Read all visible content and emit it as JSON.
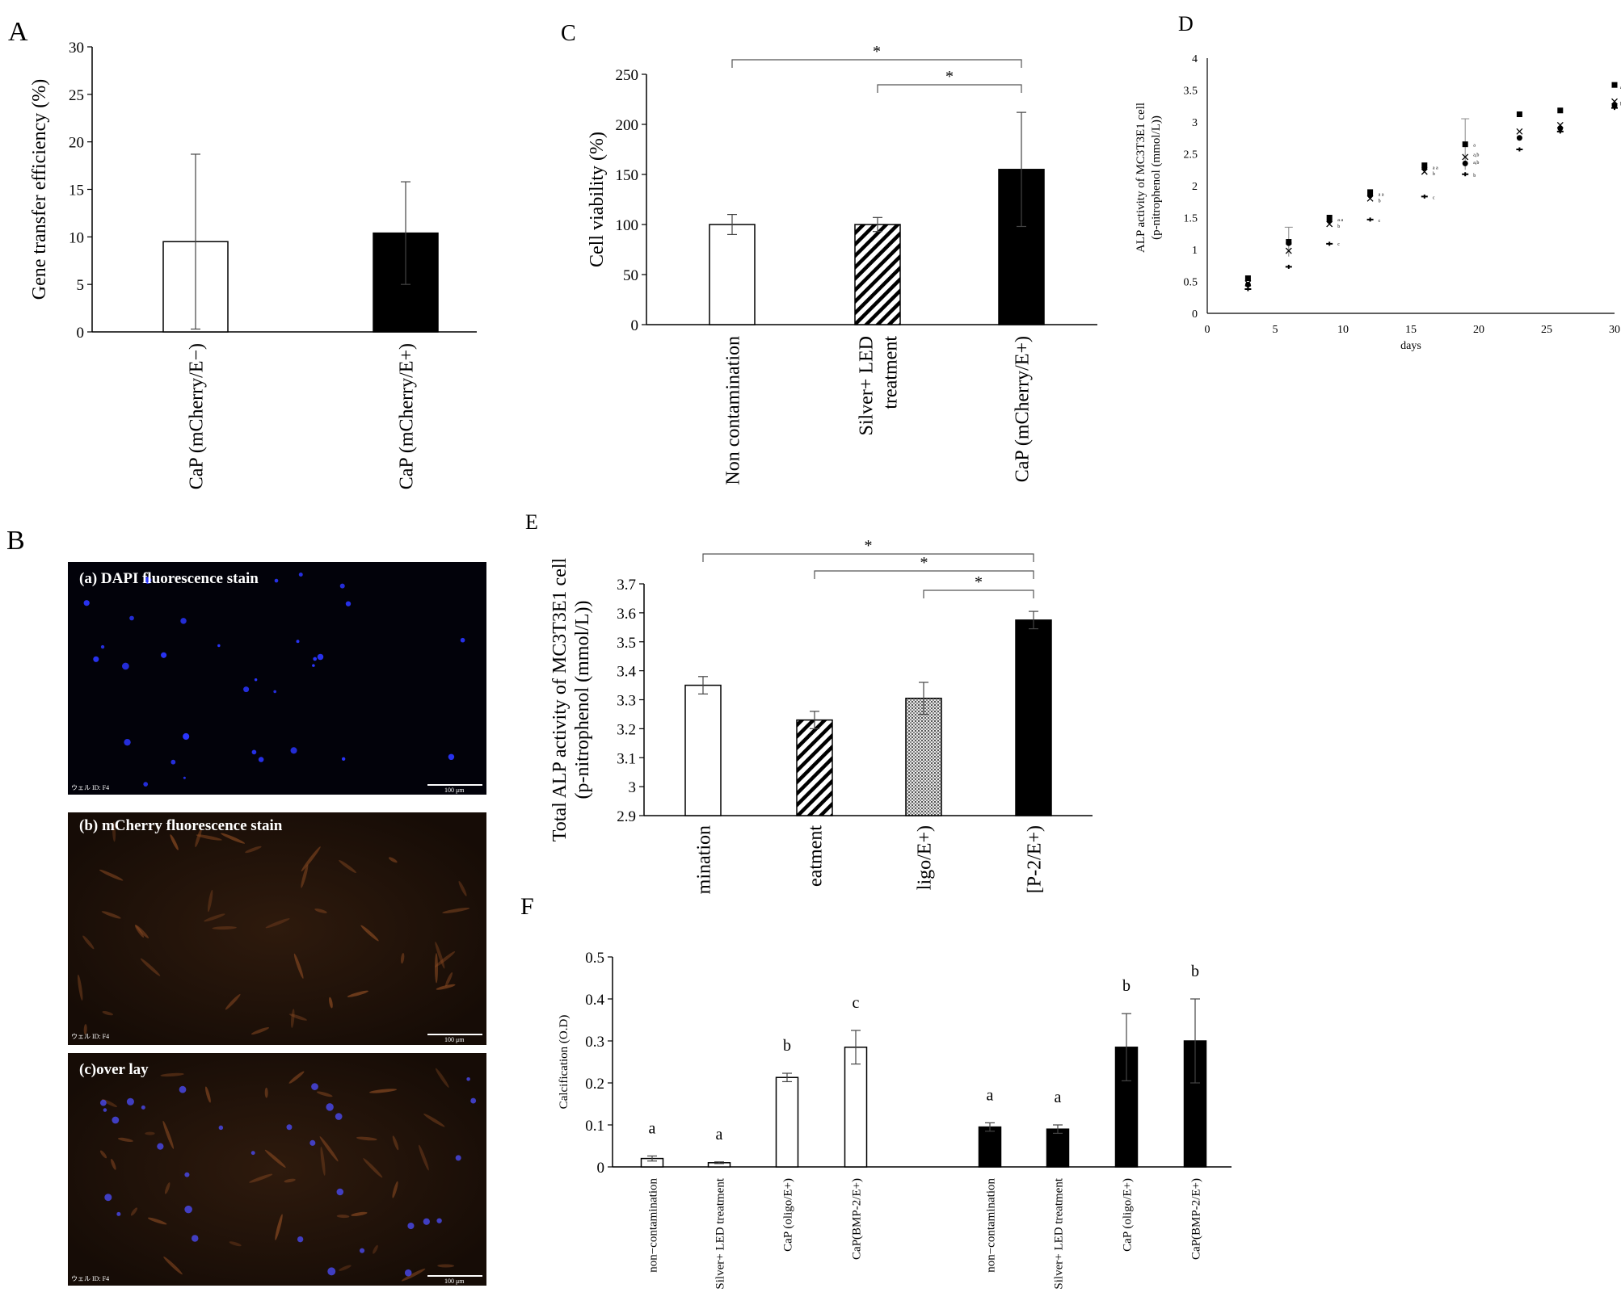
{
  "figure": {
    "panel_labels": [
      "A",
      "B",
      "C",
      "D",
      "E",
      "F"
    ]
  },
  "chart_data": [
    {
      "id": "A",
      "type": "bar",
      "ylabel": "Gene transfer efficiency (%)",
      "ylim": [
        0,
        30
      ],
      "yticks": [
        0,
        5,
        10,
        15,
        20,
        25,
        30
      ],
      "categories": [
        "CaP (mCherry/E−)",
        "CaP (mCherry/E+)"
      ],
      "values": [
        9.5,
        10.4
      ],
      "errors": [
        9.2,
        5.4
      ],
      "fills": [
        "#ffffff",
        "#000000"
      ]
    },
    {
      "id": "C",
      "type": "bar",
      "ylabel": "Cell viability (%)",
      "ylim": [
        0,
        250
      ],
      "yticks": [
        0,
        50,
        100,
        150,
        200,
        250
      ],
      "categories": [
        [
          "Non contamination"
        ],
        [
          "Silver+ LED",
          "treatment"
        ],
        [
          "CaP (mCherry/E+)"
        ]
      ],
      "values": [
        100,
        100,
        155
      ],
      "errors": [
        10,
        7,
        57
      ],
      "fills": [
        "white",
        "hatch",
        "black"
      ],
      "significance": [
        {
          "from": 0,
          "to": 2,
          "label": "*"
        },
        {
          "from": 1,
          "to": 2,
          "label": "*"
        }
      ]
    },
    {
      "id": "D",
      "type": "scatter",
      "xlabel": "days",
      "ylabel": [
        "ALP activity of MC3T3E1 cell",
        "(p-nitrophenol (mmol/L))"
      ],
      "xlim": [
        0,
        30
      ],
      "ylim": [
        0,
        4
      ],
      "xticks": [
        0,
        5,
        10,
        15,
        20,
        25,
        30
      ],
      "yticks": [
        0,
        0.5,
        1,
        1.5,
        2,
        2.5,
        3,
        3.5,
        4
      ],
      "series": [
        {
          "marker": "square",
          "x": [
            3,
            6,
            9,
            12,
            16,
            19,
            23,
            26,
            30
          ],
          "y": [
            0.55,
            1.12,
            1.5,
            1.9,
            2.32,
            2.65,
            3.12,
            3.18,
            3.58
          ]
        },
        {
          "marker": "x",
          "x": [
            3,
            6,
            9,
            12,
            16,
            19,
            23,
            26,
            30
          ],
          "y": [
            0.47,
            0.98,
            1.4,
            1.8,
            2.22,
            2.45,
            2.85,
            2.95,
            3.32
          ]
        },
        {
          "marker": "circle",
          "x": [
            3,
            6,
            9,
            12,
            16,
            19,
            23,
            26,
            30
          ],
          "y": [
            0.45,
            1.1,
            1.45,
            1.85,
            2.28,
            2.35,
            2.75,
            2.9,
            3.26
          ]
        },
        {
          "marker": "dash",
          "x": [
            3,
            6,
            9,
            12,
            16,
            19,
            23,
            26,
            30
          ],
          "y": [
            0.38,
            0.73,
            1.09,
            1.47,
            1.83,
            2.18,
            2.57,
            2.85,
            3.22
          ]
        }
      ],
      "errors": [
        {
          "x": 6,
          "y": 1.12,
          "e": 0.23
        },
        {
          "x": 19,
          "y": 2.65,
          "e": 0.4
        }
      ],
      "annotations": [
        {
          "x": 19.6,
          "y": 2.65,
          "text": "a"
        },
        {
          "x": 19.6,
          "y": 2.5,
          "text": "a,b"
        },
        {
          "x": 19.6,
          "y": 2.38,
          "text": "a,b"
        },
        {
          "x": 19.6,
          "y": 2.18,
          "text": "b"
        },
        {
          "x": 9.6,
          "y": 1.48,
          "text": "a a"
        },
        {
          "x": 9.6,
          "y": 1.38,
          "text": "b"
        },
        {
          "x": 9.6,
          "y": 1.1,
          "text": "c"
        },
        {
          "x": 12.6,
          "y": 1.88,
          "text": "a a"
        },
        {
          "x": 12.6,
          "y": 1.78,
          "text": "b"
        },
        {
          "x": 12.6,
          "y": 1.47,
          "text": "c"
        },
        {
          "x": 16.6,
          "y": 2.3,
          "text": "a a"
        },
        {
          "x": 16.6,
          "y": 2.2,
          "text": "b"
        },
        {
          "x": 16.6,
          "y": 1.83,
          "text": "c"
        },
        {
          "x": 30.4,
          "y": 3.56,
          "text": "a"
        },
        {
          "x": 30.4,
          "y": 3.3,
          "text": "b"
        }
      ]
    },
    {
      "id": "E",
      "type": "bar",
      "ylabel": [
        "Total ALP activity of MC3T3E1 cell",
        "(p-nitrophenol (mmol/L))"
      ],
      "ylim": [
        2.9,
        3.7
      ],
      "yticks": [
        2.9,
        3,
        3.1,
        3.2,
        3.3,
        3.4,
        3.5,
        3.6,
        3.7
      ],
      "categories": [
        "mination",
        "eatment",
        "ligo/E+)",
        "[P-2/E+)"
      ],
      "values": [
        3.35,
        3.23,
        3.305,
        3.575
      ],
      "errors": [
        0.03,
        0.03,
        0.055,
        0.03
      ],
      "fills": [
        "white",
        "hatch",
        "dots",
        "black"
      ],
      "significance": [
        {
          "from": 0,
          "to": 3,
          "label": "*"
        },
        {
          "from": 1,
          "to": 3,
          "label": "*"
        },
        {
          "from": 2,
          "to": 3,
          "label": "*"
        }
      ]
    },
    {
      "id": "F",
      "type": "bar",
      "ylabel": "Calcification (O.D)",
      "ylim": [
        0,
        0.5
      ],
      "yticks": [
        0,
        0.1,
        0.2,
        0.3,
        0.4,
        0.5
      ],
      "categories": [
        "non−contamination",
        "Silver+ LED treatment",
        "CaP (oligo/E+)",
        "CaP(BMP-2/E+)",
        "non−contamination",
        "Silver+ LED treatment",
        "CaP (oligo/E+)",
        "CaP(BMP-2/E+)"
      ],
      "values": [
        0.02,
        0.01,
        0.213,
        0.285,
        0.095,
        0.09,
        0.285,
        0.3
      ],
      "errors": [
        0.006,
        0.002,
        0.01,
        0.04,
        0.01,
        0.01,
        0.08,
        0.1
      ],
      "fills": [
        "white",
        "white",
        "white",
        "white",
        "black",
        "black",
        "black",
        "black"
      ],
      "letters": [
        "a",
        "a",
        "b",
        "c",
        "a",
        "a",
        "b",
        "b"
      ]
    }
  ],
  "micrographs": [
    {
      "title": "(a) DAPI fluorescence stain",
      "well": "ウェル ID: F4",
      "scale": "100 μm"
    },
    {
      "title": "(b) mCherry fluorescence stain",
      "well": "ウェル ID: F4",
      "scale": "100 μm"
    },
    {
      "title": "(c)over lay",
      "well": "ウェル ID: F4",
      "scale": "100 μm"
    }
  ]
}
